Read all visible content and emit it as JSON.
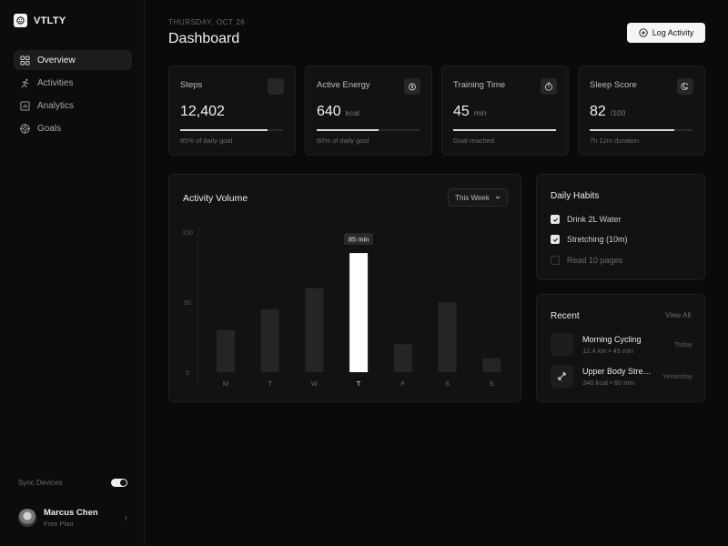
{
  "app": {
    "name": "VTLTY"
  },
  "sidebar": {
    "items": [
      {
        "label": "Overview",
        "icon": "grid-icon",
        "active": true
      },
      {
        "label": "Activities",
        "icon": "running-icon",
        "active": false
      },
      {
        "label": "Analytics",
        "icon": "chart-icon",
        "active": false
      },
      {
        "label": "Goals",
        "icon": "target-icon",
        "active": false
      }
    ],
    "sync_label": "Sync Devices",
    "sync_on": true,
    "user": {
      "name": "Marcus Chen",
      "plan": "Free Plan"
    }
  },
  "header": {
    "date": "THURSDAY, OCT 26",
    "title": "Dashboard",
    "log_button": "Log Activity"
  },
  "stats": [
    {
      "label": "Steps",
      "value": "12,402",
      "unit": "",
      "progress": 0.85,
      "note": "85% of daily goal",
      "icon": "footprints-icon"
    },
    {
      "label": "Active Energy",
      "value": "640",
      "unit": "kcal",
      "progress": 0.6,
      "note": "60% of daily goal",
      "icon": "flame-icon"
    },
    {
      "label": "Training Time",
      "value": "45",
      "unit": "min",
      "progress": 1.0,
      "note": "Goal reached",
      "icon": "timer-icon"
    },
    {
      "label": "Sleep Score",
      "value": "82",
      "unit": "/100",
      "progress": 0.82,
      "note": "7h 12m duration",
      "icon": "moon-icon"
    }
  ],
  "activity": {
    "title": "Activity Volume",
    "range_select": "This Week",
    "tooltip": "85 min"
  },
  "chart_data": {
    "type": "bar",
    "categories": [
      "M",
      "T",
      "W",
      "T",
      "F",
      "S",
      "S"
    ],
    "values": [
      30,
      45,
      60,
      85,
      20,
      50,
      10
    ],
    "highlight_index": 3,
    "yticks": [
      "0",
      "50",
      "100"
    ],
    "ylim": [
      0,
      100
    ],
    "grid": false,
    "colors": {
      "bar": "#252525",
      "highlight": "#ffffff"
    }
  },
  "habits": {
    "title": "Daily Habits",
    "items": [
      {
        "label": "Drink 2L Water",
        "done": true
      },
      {
        "label": "Stretching (10m)",
        "done": true
      },
      {
        "label": "Read 10 pages",
        "done": false
      }
    ]
  },
  "recent": {
    "title": "Recent",
    "view_all": "View All",
    "items": [
      {
        "name": "Morning Cycling",
        "meta": "12.4 km  •  45 min",
        "when": "Today",
        "icon": "bike-icon"
      },
      {
        "name": "Upper Body Strength",
        "meta": "340 kcal  •  60 min",
        "when": "Yesterday",
        "icon": "dumbbell-icon"
      }
    ]
  }
}
